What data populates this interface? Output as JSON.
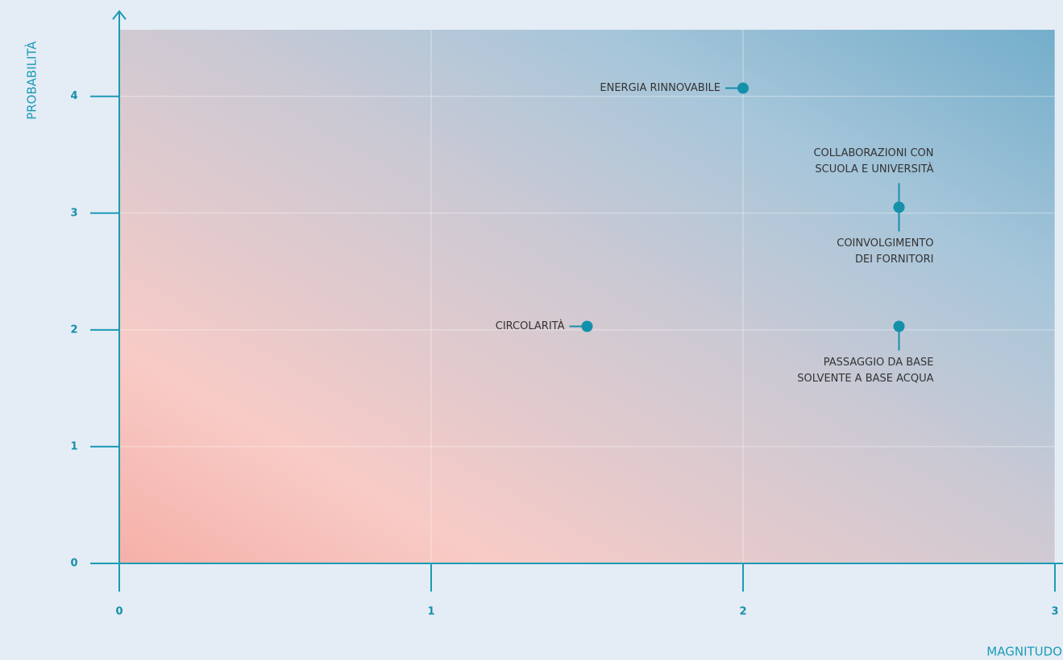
{
  "chart_data": {
    "type": "scatter",
    "x_label": "MAGNITUDO",
    "y_label": "PROBABILITÀ",
    "x": [
      2.0,
      2.5,
      2.5,
      1.5,
      2.5
    ],
    "values": [
      4.07,
      3.05,
      3.05,
      2.03,
      2.03
    ],
    "point_labels": [
      [
        "ENERGIA RINNOVABILE"
      ],
      [
        "COLLABORAZIONI CON",
        "SCUOLA E UNIVERSITÀ"
      ],
      [
        "COINVOLGIMENTO",
        "DEI FORNITORI"
      ],
      [
        "CIRCOLARITÀ"
      ],
      [
        "PASSAGGIO DA BASE",
        "SOLVENTE A BASE ACQUA"
      ]
    ],
    "color": "#1590aa",
    "xlim": [
      0,
      3
    ],
    "xticks": [
      0,
      1,
      2,
      3
    ],
    "ylim": [
      0,
      4.57
    ],
    "yticks": [
      0,
      1,
      2,
      3,
      4
    ],
    "grid": true
  }
}
